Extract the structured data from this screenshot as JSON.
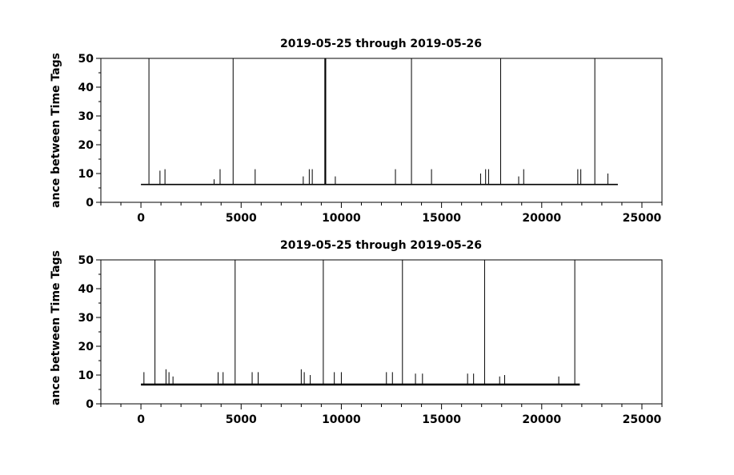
{
  "chart_data": [
    {
      "type": "line",
      "title": "2019-05-25 through 2019-05-26",
      "ylabel": "ance between Time Tags",
      "xlim": [
        -2000,
        26000
      ],
      "ylim": [
        0,
        50
      ],
      "xticks": [
        0,
        5000,
        10000,
        15000,
        20000,
        25000
      ],
      "yticks": [
        0,
        10,
        20,
        30,
        40,
        50
      ],
      "x_range": [
        0,
        23800
      ],
      "baseline": 6.2,
      "large_spikes": [
        400,
        4600,
        9200,
        13500,
        17950,
        22650
      ],
      "small_spikes": [
        {
          "x": 950,
          "y": 11
        },
        {
          "x": 1200,
          "y": 11.5
        },
        {
          "x": 3650,
          "y": 8
        },
        {
          "x": 3950,
          "y": 11.5
        },
        {
          "x": 5700,
          "y": 11.5
        },
        {
          "x": 8100,
          "y": 9
        },
        {
          "x": 8400,
          "y": 11.5
        },
        {
          "x": 8550,
          "y": 11.5
        },
        {
          "x": 9700,
          "y": 9
        },
        {
          "x": 12700,
          "y": 11.5
        },
        {
          "x": 14500,
          "y": 11.5
        },
        {
          "x": 16950,
          "y": 10
        },
        {
          "x": 17200,
          "y": 11.5
        },
        {
          "x": 17350,
          "y": 11.5
        },
        {
          "x": 18850,
          "y": 9
        },
        {
          "x": 19100,
          "y": 11.5
        },
        {
          "x": 21800,
          "y": 11.5
        },
        {
          "x": 21950,
          "y": 11.5
        },
        {
          "x": 23300,
          "y": 10
        }
      ]
    },
    {
      "type": "line",
      "title": "2019-05-25 through 2019-05-26",
      "ylabel": "ance between Time Tags",
      "xlim": [
        -2000,
        26000
      ],
      "ylim": [
        0,
        50
      ],
      "xticks": [
        0,
        5000,
        10000,
        15000,
        20000,
        25000
      ],
      "yticks": [
        0,
        10,
        20,
        30,
        40,
        50
      ],
      "x_range": [
        0,
        21900
      ],
      "baseline": 6.7,
      "large_spikes": [
        700,
        4700,
        9100,
        13050,
        17150,
        21650
      ],
      "small_spikes": [
        {
          "x": 150,
          "y": 11
        },
        {
          "x": 1250,
          "y": 12
        },
        {
          "x": 1400,
          "y": 11
        },
        {
          "x": 1600,
          "y": 9.5
        },
        {
          "x": 3850,
          "y": 11
        },
        {
          "x": 4100,
          "y": 11
        },
        {
          "x": 5550,
          "y": 11
        },
        {
          "x": 5850,
          "y": 11
        },
        {
          "x": 8000,
          "y": 12
        },
        {
          "x": 8150,
          "y": 11
        },
        {
          "x": 8450,
          "y": 10
        },
        {
          "x": 9650,
          "y": 11
        },
        {
          "x": 10000,
          "y": 11
        },
        {
          "x": 12250,
          "y": 11
        },
        {
          "x": 12550,
          "y": 11
        },
        {
          "x": 13700,
          "y": 10.5
        },
        {
          "x": 14050,
          "y": 10.5
        },
        {
          "x": 16300,
          "y": 10.5
        },
        {
          "x": 16600,
          "y": 10.5
        },
        {
          "x": 17900,
          "y": 9.5
        },
        {
          "x": 18150,
          "y": 10
        },
        {
          "x": 20850,
          "y": 9.5
        }
      ]
    }
  ]
}
